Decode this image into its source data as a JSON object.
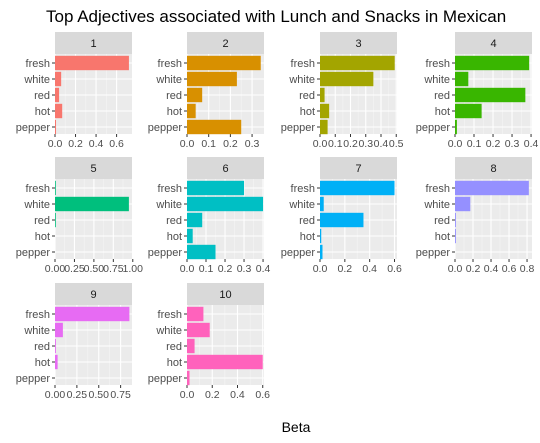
{
  "chart_data": {
    "type": "bar",
    "orientation": "horizontal",
    "title": "Top Adjectives associated with Lunch and Snacks in Mexican",
    "xlabel": "Beta",
    "ylabel": "",
    "categories": [
      "fresh",
      "white",
      "red",
      "hot",
      "pepper"
    ],
    "facets": [
      {
        "name": "1",
        "color": "#F8766D",
        "xlim": [
          0,
          0.75
        ],
        "ticks": [
          0,
          0.2,
          0.4,
          0.6
        ],
        "tick_labels": [
          "0.0",
          "0.2",
          "0.4",
          "0.6"
        ],
        "values": [
          0.72,
          0.06,
          0.04,
          0.07,
          0.01
        ]
      },
      {
        "name": "2",
        "color": "#D89000",
        "xlim": [
          0,
          0.355
        ],
        "ticks": [
          0,
          0.1,
          0.2,
          0.3
        ],
        "tick_labels": [
          "0.0",
          "0.1",
          "0.2",
          "0.3"
        ],
        "values": [
          0.34,
          0.23,
          0.07,
          0.04,
          0.25
        ]
      },
      {
        "name": "3",
        "color": "#A3A500",
        "xlim": [
          0,
          0.505
        ],
        "ticks": [
          0,
          0.1,
          0.2,
          0.3,
          0.4,
          0.5
        ],
        "tick_labels": [
          "0.0",
          "0.1",
          "0.2",
          "0.3",
          "0.4",
          "0.5"
        ],
        "values": [
          0.49,
          0.35,
          0.03,
          0.06,
          0.05
        ]
      },
      {
        "name": "4",
        "color": "#39B600",
        "xlim": [
          0,
          0.405
        ],
        "ticks": [
          0,
          0.1,
          0.2,
          0.3,
          0.4
        ],
        "tick_labels": [
          "0.0",
          "0.1",
          "0.2",
          "0.3",
          "0.4"
        ],
        "values": [
          0.39,
          0.07,
          0.37,
          0.14,
          0.01
        ]
      },
      {
        "name": "5",
        "color": "#00BF7D",
        "xlim": [
          0,
          0.99
        ],
        "ticks": [
          0,
          0.25,
          0.5,
          0.75,
          1.0
        ],
        "tick_labels": [
          "0.00",
          "0.25",
          "0.50",
          "0.75",
          "1.00"
        ],
        "values": [
          0.01,
          0.95,
          0.01,
          0.0,
          0.0
        ]
      },
      {
        "name": "6",
        "color": "#00BFC4",
        "xlim": [
          0,
          0.405
        ],
        "ticks": [
          0,
          0.1,
          0.2,
          0.3,
          0.4
        ],
        "tick_labels": [
          "0.0",
          "0.1",
          "0.2",
          "0.3",
          "0.4"
        ],
        "values": [
          0.3,
          0.4,
          0.08,
          0.03,
          0.15
        ]
      },
      {
        "name": "7",
        "color": "#00B0F6",
        "xlim": [
          0,
          0.62
        ],
        "ticks": [
          0,
          0.2,
          0.4,
          0.6
        ],
        "tick_labels": [
          "0.0",
          "0.2",
          "0.4",
          "0.6"
        ],
        "values": [
          0.6,
          0.03,
          0.35,
          0.01,
          0.02
        ]
      },
      {
        "name": "8",
        "color": "#9590FF",
        "xlim": [
          0,
          0.855
        ],
        "ticks": [
          0,
          0.2,
          0.4,
          0.6,
          0.8
        ],
        "tick_labels": [
          "0.0",
          "0.2",
          "0.4",
          "0.6",
          "0.8"
        ],
        "values": [
          0.82,
          0.17,
          0.01,
          0.01,
          0.0
        ]
      },
      {
        "name": "9",
        "color": "#E76BF3",
        "xlim": [
          0,
          0.88
        ],
        "ticks": [
          0,
          0.25,
          0.5,
          0.75
        ],
        "tick_labels": [
          "0.00",
          "0.25",
          "0.50",
          "0.75"
        ],
        "values": [
          0.85,
          0.09,
          0.01,
          0.03,
          0.0
        ]
      },
      {
        "name": "10",
        "color": "#FF62BC",
        "xlim": [
          0,
          0.61
        ],
        "ticks": [
          0,
          0.2,
          0.4,
          0.6
        ],
        "tick_labels": [
          "0.0",
          "0.2",
          "0.4",
          "0.6"
        ],
        "values": [
          0.13,
          0.18,
          0.06,
          0.6,
          0.02
        ]
      }
    ],
    "grid": true,
    "legend": "none"
  }
}
